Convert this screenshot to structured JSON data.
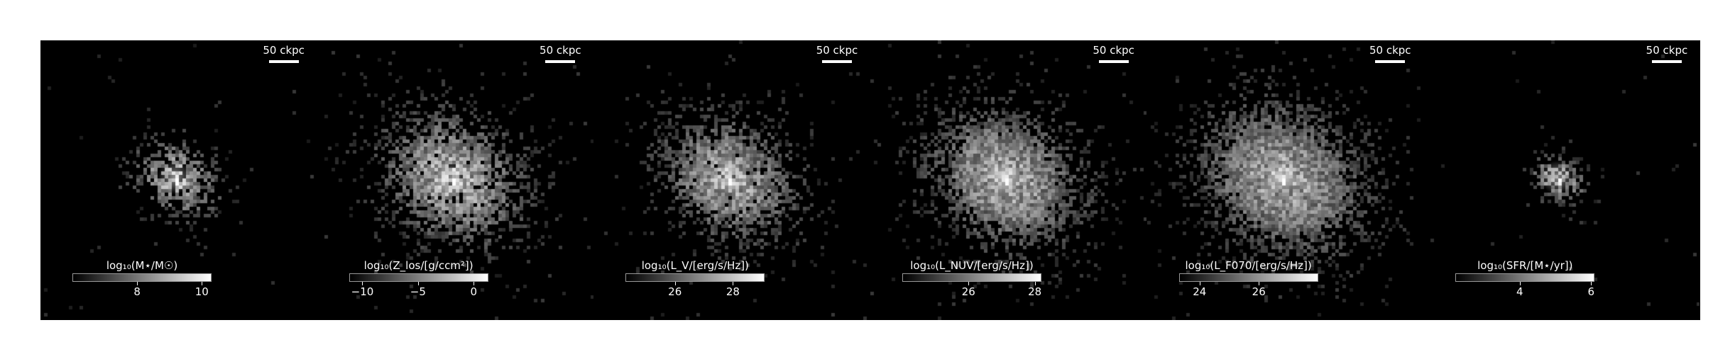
{
  "figure": {
    "panels": [
      {
        "scalebar_label": "50 ckpc",
        "colorbar": {
          "label": "log₁₀(M⋆/M☉)",
          "range": [
            6.0,
            10.3
          ],
          "ticks": [
            {
              "value": 8,
              "label": "8"
            },
            {
              "value": 10,
              "label": "10"
            }
          ]
        },
        "image": {
          "fill_level": 0.35,
          "extent_fraction": 0.45,
          "core_brightness": 1.0,
          "seed": 11
        }
      },
      {
        "scalebar_label": "50 ckpc",
        "colorbar": {
          "label": "log₁₀(Z_los/[g/ccm²])",
          "range": [
            -11.2,
            1.3
          ],
          "ticks": [
            {
              "value": -10,
              "label": "−10"
            },
            {
              "value": -5,
              "label": "−5"
            },
            {
              "value": 0,
              "label": "0"
            }
          ]
        },
        "image": {
          "fill_level": 0.55,
          "extent_fraction": 0.75,
          "core_brightness": 1.0,
          "seed": 23
        }
      },
      {
        "scalebar_label": "50 ckpc",
        "colorbar": {
          "label": "log₁₀(L_V/[erg/s/Hz])",
          "range": [
            24.3,
            29.1
          ],
          "ticks": [
            {
              "value": 26,
              "label": "26"
            },
            {
              "value": 28,
              "label": "28"
            }
          ]
        },
        "image": {
          "fill_level": 0.6,
          "extent_fraction": 0.7,
          "core_brightness": 0.95,
          "seed": 37
        }
      },
      {
        "scalebar_label": "50 ckpc",
        "colorbar": {
          "label": "log₁₀(L_NUV/[erg/s/Hz])",
          "range": [
            24.0,
            28.2
          ],
          "ticks": [
            {
              "value": 26,
              "label": "26"
            },
            {
              "value": 28,
              "label": "28"
            }
          ]
        },
        "image": {
          "fill_level": 0.7,
          "extent_fraction": 0.8,
          "core_brightness": 0.95,
          "seed": 41
        }
      },
      {
        "scalebar_label": "50 ckpc",
        "colorbar": {
          "label": "log₁₀(L_F070/[erg/s/Hz])",
          "range": [
            23.3,
            28.0
          ],
          "ticks": [
            {
              "value": 24,
              "label": "24"
            },
            {
              "value": 26,
              "label": "26"
            }
          ]
        },
        "image": {
          "fill_level": 0.75,
          "extent_fraction": 0.85,
          "core_brightness": 0.95,
          "seed": 53
        }
      },
      {
        "scalebar_label": "50 ckpc",
        "colorbar": {
          "label": "log₁₀(SFR/[M⋆/yr])",
          "range": [
            2.2,
            6.1
          ],
          "ticks": [
            {
              "value": 4,
              "label": "4"
            },
            {
              "value": 6,
              "label": "6"
            }
          ]
        },
        "image": {
          "fill_level": 0.3,
          "extent_fraction": 0.3,
          "core_brightness": 0.9,
          "seed": 67
        }
      }
    ]
  }
}
